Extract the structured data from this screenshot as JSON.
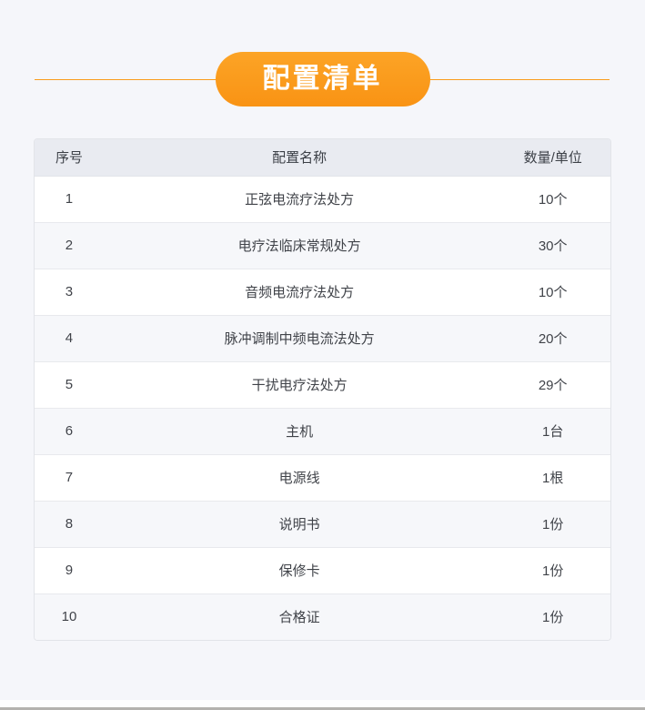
{
  "page": {
    "background_color": "#f5f6fa",
    "accent_color": "#fa9c1b",
    "bottom_bar_color": "#b3b1ae"
  },
  "header": {
    "title": "配置清单"
  },
  "table": {
    "columns": [
      "序号",
      "配置名称",
      "数量/单位"
    ],
    "rows": [
      {
        "index": "1",
        "name": "正弦电流疗法处方",
        "quantity": "10个"
      },
      {
        "index": "2",
        "name": "电疗法临床常规处方",
        "quantity": "30个"
      },
      {
        "index": "3",
        "name": "音频电流疗法处方",
        "quantity": "10个"
      },
      {
        "index": "4",
        "name": "脉冲调制中频电流法处方",
        "quantity": "20个"
      },
      {
        "index": "5",
        "name": "干扰电疗法处方",
        "quantity": "29个"
      },
      {
        "index": "6",
        "name": "主机",
        "quantity": "1台"
      },
      {
        "index": "7",
        "name": "电源线",
        "quantity": "1根"
      },
      {
        "index": "8",
        "name": "说明书",
        "quantity": "1份"
      },
      {
        "index": "9",
        "name": "保修卡",
        "quantity": "1份"
      },
      {
        "index": "10",
        "name": "合格证",
        "quantity": "1份"
      }
    ]
  }
}
